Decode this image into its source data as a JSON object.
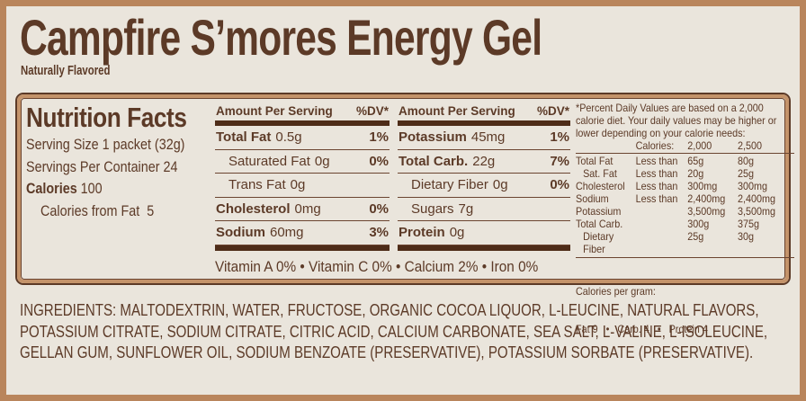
{
  "header": {
    "title": "Campfire S’mores Energy Gel",
    "subtitle": "Naturally Flavored"
  },
  "panel": {
    "title": "Nutrition Facts",
    "serving_size": "Serving Size 1 packet (32g)",
    "servings_per_container": "Servings Per Container 24",
    "calories_label": "Calories",
    "calories_value": " 100",
    "calories_from_fat": "Calories from Fat  5",
    "columns": [
      {
        "header_left": "Amount Per Serving",
        "header_right": "%DV*",
        "rows": [
          {
            "label": "Total Fat",
            "amount": "0.5g",
            "dv": "1%",
            "bold": true,
            "indent": false
          },
          {
            "label": "Saturated Fat",
            "amount": "0g",
            "dv": "0%",
            "bold": false,
            "indent": true
          },
          {
            "label": "Trans Fat",
            "amount": "0g",
            "dv": "",
            "bold": false,
            "indent": true
          },
          {
            "label": "Cholesterol",
            "amount": "0mg",
            "dv": "0%",
            "bold": true,
            "indent": false
          },
          {
            "label": "Sodium",
            "amount": "60mg",
            "dv": "3%",
            "bold": true,
            "indent": false
          }
        ]
      },
      {
        "header_left": "Amount Per Serving",
        "header_right": "%DV*",
        "rows": [
          {
            "label": "Potassium",
            "amount": "45mg",
            "dv": "1%",
            "bold": true,
            "indent": false
          },
          {
            "label": "Total Carb.",
            "amount": "22g",
            "dv": "7%",
            "bold": true,
            "indent": false
          },
          {
            "label": "Dietary Fiber",
            "amount": "0g",
            "dv": "0%",
            "bold": false,
            "indent": true
          },
          {
            "label": "Sugars",
            "amount": "7g",
            "dv": "",
            "bold": false,
            "indent": true
          },
          {
            "label": "Protein",
            "amount": "0g",
            "dv": "",
            "bold": true,
            "indent": false
          }
        ]
      }
    ],
    "vitamins_line": "Vitamin A 0% • Vitamin C 0% • Calcium 2% • Iron 0%",
    "footnote": {
      "text": "*Percent Daily Values are based on a 2,000 calorie diet. Your daily values may be higher or lower depending on your calorie needs:",
      "table": {
        "header": {
          "label": "Calories:",
          "col1": "2,000",
          "col2": "2,500"
        },
        "rows": [
          {
            "label": "Total Fat",
            "qualifier": "Less than",
            "v1": "65g",
            "v2": "80g",
            "indent": false
          },
          {
            "label": "Sat. Fat",
            "qualifier": "Less than",
            "v1": "20g",
            "v2": "25g",
            "indent": true
          },
          {
            "label": "Cholesterol",
            "qualifier": "Less than",
            "v1": "300mg",
            "v2": "300mg",
            "indent": false
          },
          {
            "label": "Sodium",
            "qualifier": "Less than",
            "v1": "2,400mg",
            "v2": "2,400mg",
            "indent": false
          },
          {
            "label": "Potassium",
            "qualifier": "",
            "v1": "3,500mg",
            "v2": "3,500mg",
            "indent": false
          },
          {
            "label": "Total Carb.",
            "qualifier": "",
            "v1": "300g",
            "v2": "375g",
            "indent": false
          },
          {
            "label": "Dietary Fiber",
            "qualifier": "",
            "v1": "25g",
            "v2": "30g",
            "indent": true
          }
        ]
      },
      "calories_per_gram_label": "Calories per gram:",
      "calories_per_gram_line": "Fat 9   •   Carb. 4   •   Protein 4"
    }
  },
  "ingredients": "INGREDIENTS: MALTODEXTRIN, WATER, FRUCTOSE, ORGANIC COCOA LIQUOR, L-LEUCINE, NATURAL FLAVORS, POTASSIUM CITRATE, SODIUM CITRATE, CITRIC ACID, CALCIUM CARBONATE, SEA SALT, L-VALINE, L-ISOLEUCINE, GELLAN GUM, SUNFLOWER OIL, SODIUM BENZOATE (PRESERVATIVE), POTASSIUM SORBATE (PRESERVATIVE).",
  "colors": {
    "background": "#eae5dc",
    "text_brown": "#5c3a27",
    "bar_brown": "#4e2c18",
    "border_tan": "#b9855c",
    "panel_band_tan": "#c4936a"
  }
}
